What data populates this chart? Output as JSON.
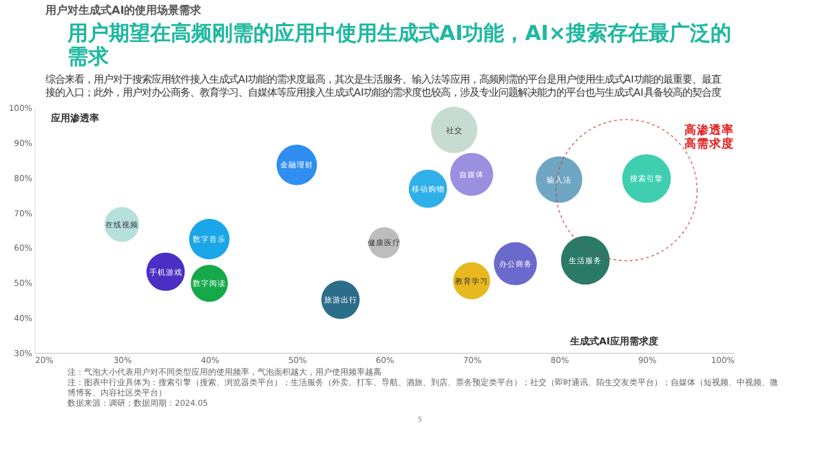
{
  "chart_data": {
    "type": "bubble",
    "title": "用户期望在高频刚需的应用中使用生成式AI功能，AI×搜索存在最广泛的需求",
    "subtitle": "综合来看，用户对于搜索应用软件接入生成式AI功能的需求度最高，其次是生活服务、输入法等应用，高频刚需的平台是用户使用生成式AI功能的最重要、最直接的入口；此外，用户对办公商务、教育学习、自媒体等应用接入生成式AI功能的需求度也较高，涉及专业问题解决能力的平台也与生成式AI具备较高的契合度",
    "xlabel": "生成式AI应用需求度",
    "ylabel": "应用渗透率",
    "annotations": [
      "用户对生成式AI的使用场景需求",
      "高渗透率高需求度",
      "注：气泡大小代表用户对不同类型应用的使用频率，气泡面积越大，用户使用频率越高",
      "注：图表中行业具体为：搜索引擎（搜索、浏览器类平台）；生活服务（外卖、打车、导航、酒旅、到店、票务预定类平台）；社交（即时通讯、陌生交友类平台）；自媒体（短视频、中视频、微博博客、内容社区类平台）",
      "数据来源：调研；数据周期：2024.05",
      "5"
    ],
    "xlim": [
      20,
      100
    ],
    "ylim": [
      30,
      100
    ],
    "xticks": [
      {
        "value": 20,
        "label": "20%"
      },
      {
        "value": 30,
        "label": "30%"
      },
      {
        "value": 40,
        "label": "40%"
      },
      {
        "value": 50,
        "label": "50%"
      },
      {
        "value": 60,
        "label": "60%"
      },
      {
        "value": 70,
        "label": "70%"
      },
      {
        "value": 80,
        "label": "80%"
      },
      {
        "value": 90,
        "label": "90%"
      },
      {
        "value": 100,
        "label": "100%"
      }
    ],
    "yticks": [
      {
        "value": 30,
        "label": "30%"
      },
      {
        "value": 40,
        "label": "40%"
      },
      {
        "value": 50,
        "label": "50%"
      },
      {
        "value": 60,
        "label": "60%"
      },
      {
        "value": 70,
        "label": "70%"
      },
      {
        "value": 80,
        "label": "80%"
      },
      {
        "value": 90,
        "label": "90%"
      },
      {
        "value": 100,
        "label": "100%"
      }
    ],
    "grid": false,
    "series": [
      {
        "name": "在线视频",
        "color": "#b7e0dd",
        "x": [
          30
        ],
        "values": [
          66.6
        ],
        "sizes": [
          0.51
        ]
      },
      {
        "name": "手机游戏",
        "color": "#4a2fc4",
        "x": [
          35
        ],
        "values": [
          53.1
        ],
        "sizes": [
          0.62
        ]
      },
      {
        "name": "数字音乐",
        "color": "#1aa6e8",
        "x": [
          40
        ],
        "values": [
          62.4
        ],
        "sizes": [
          0.69
        ]
      },
      {
        "name": "数字阅读",
        "color": "#16a94a",
        "x": [
          40
        ],
        "values": [
          49.8
        ],
        "sizes": [
          0.58
        ]
      },
      {
        "name": "金融理财",
        "color": "#2f8ef0",
        "x": [
          50
        ],
        "values": [
          83.6
        ],
        "sizes": [
          0.69
        ]
      },
      {
        "name": "健康医疗",
        "color": "#bdbdbd",
        "x": [
          60
        ],
        "values": [
          61.4
        ],
        "sizes": [
          0.41
        ]
      },
      {
        "name": "旅游出行",
        "color": "#2c6e8a",
        "x": [
          55
        ],
        "values": [
          45.1
        ],
        "sizes": [
          0.62
        ]
      },
      {
        "name": "社交",
        "color": "#c6dcd0",
        "x": [
          68
        ],
        "values": [
          93.6
        ],
        "sizes": [
          0.91
        ]
      },
      {
        "name": "自媒体",
        "color": "#9b8fe0",
        "x": [
          70
        ],
        "values": [
          80.9
        ],
        "sizes": [
          0.78
        ]
      },
      {
        "name": "移动购物",
        "color": "#2fb0ea",
        "x": [
          65
        ],
        "values": [
          76.8
        ],
        "sizes": [
          0.62
        ]
      },
      {
        "name": "输入法",
        "color": "#6fa6c4",
        "x": [
          80
        ],
        "values": [
          79.4
        ],
        "sizes": [
          0.91
        ]
      },
      {
        "name": "搜索引擎",
        "color": "#3fcfb0",
        "x": [
          90
        ],
        "values": [
          79.7
        ],
        "sizes": [
          1
        ]
      },
      {
        "name": "生活服务",
        "color": "#2a7a68",
        "x": [
          83
        ],
        "values": [
          56.4
        ],
        "sizes": [
          1
        ]
      },
      {
        "name": "办公商务",
        "color": "#6a6acc",
        "x": [
          75
        ],
        "values": [
          55.4
        ],
        "sizes": [
          0.78
        ]
      },
      {
        "name": "教育学习",
        "color": "#e8b820",
        "x": [
          70
        ],
        "values": [
          50.5
        ],
        "sizes": [
          0.58
        ]
      }
    ]
  }
}
